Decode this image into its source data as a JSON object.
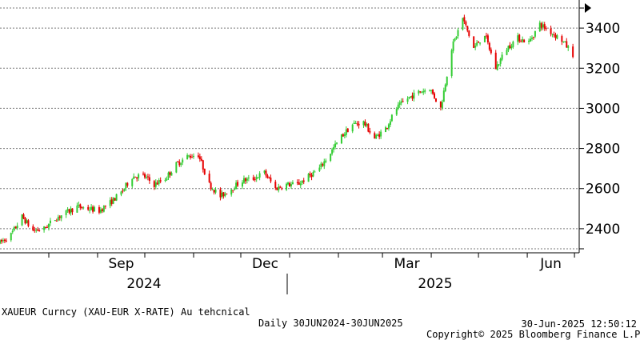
{
  "chart_data": {
    "type": "candlestick",
    "ticker": "XAUEUR Curncy (XAU-EUR X-RATE) Au tehcnical",
    "period": "Daily 30JUN2024-30JUN2025",
    "copyright": "Copyright© 2025 Bloomberg Finance L.P.",
    "timestamp": "30-Jun-2025 12:50:12",
    "x_tick_labels": [
      "Sep",
      "Dec",
      "Mar",
      "Jun"
    ],
    "year_labels": [
      "2024",
      "2025"
    ],
    "y_ticks": [
      2400,
      2600,
      2800,
      3000,
      3200,
      3400
    ],
    "ylim": [
      2280,
      3540
    ],
    "xlim": [
      "2024-07-01",
      "2025-07-04"
    ],
    "grid": true,
    "up_color": "#33cc33",
    "down_color": "#e60000",
    "close_series": [
      [
        "2024-07-01",
        2330
      ],
      [
        "2024-07-08",
        2370
      ],
      [
        "2024-07-15",
        2460
      ],
      [
        "2024-07-22",
        2390
      ],
      [
        "2024-07-29",
        2400
      ],
      [
        "2024-08-05",
        2450
      ],
      [
        "2024-08-12",
        2480
      ],
      [
        "2024-08-19",
        2510
      ],
      [
        "2024-08-26",
        2500
      ],
      [
        "2024-09-02",
        2490
      ],
      [
        "2024-09-09",
        2530
      ],
      [
        "2024-09-16",
        2580
      ],
      [
        "2024-09-23",
        2660
      ],
      [
        "2024-09-30",
        2665
      ],
      [
        "2024-10-07",
        2620
      ],
      [
        "2024-10-14",
        2650
      ],
      [
        "2024-10-21",
        2720
      ],
      [
        "2024-10-28",
        2760
      ],
      [
        "2024-11-04",
        2770
      ],
      [
        "2024-11-11",
        2620
      ],
      [
        "2024-11-18",
        2560
      ],
      [
        "2024-11-25",
        2600
      ],
      [
        "2024-12-02",
        2640
      ],
      [
        "2024-12-09",
        2650
      ],
      [
        "2024-12-16",
        2680
      ],
      [
        "2024-12-23",
        2600
      ],
      [
        "2024-12-30",
        2620
      ],
      [
        "2025-01-06",
        2620
      ],
      [
        "2025-01-13",
        2660
      ],
      [
        "2025-01-20",
        2700
      ],
      [
        "2025-01-27",
        2780
      ],
      [
        "2025-02-03",
        2860
      ],
      [
        "2025-02-10",
        2920
      ],
      [
        "2025-02-17",
        2930
      ],
      [
        "2025-02-24",
        2850
      ],
      [
        "2025-03-03",
        2900
      ],
      [
        "2025-03-10",
        3000
      ],
      [
        "2025-03-17",
        3050
      ],
      [
        "2025-03-24",
        3080
      ],
      [
        "2025-03-31",
        3100
      ],
      [
        "2025-04-07",
        3000
      ],
      [
        "2025-04-14",
        3300
      ],
      [
        "2025-04-21",
        3450
      ],
      [
        "2025-04-28",
        3300
      ],
      [
        "2025-05-05",
        3370
      ],
      [
        "2025-05-12",
        3200
      ],
      [
        "2025-05-19",
        3300
      ],
      [
        "2025-05-26",
        3350
      ],
      [
        "2025-06-02",
        3330
      ],
      [
        "2025-06-09",
        3420
      ],
      [
        "2025-06-16",
        3380
      ],
      [
        "2025-06-23",
        3340
      ],
      [
        "2025-06-30",
        3270
      ]
    ]
  }
}
